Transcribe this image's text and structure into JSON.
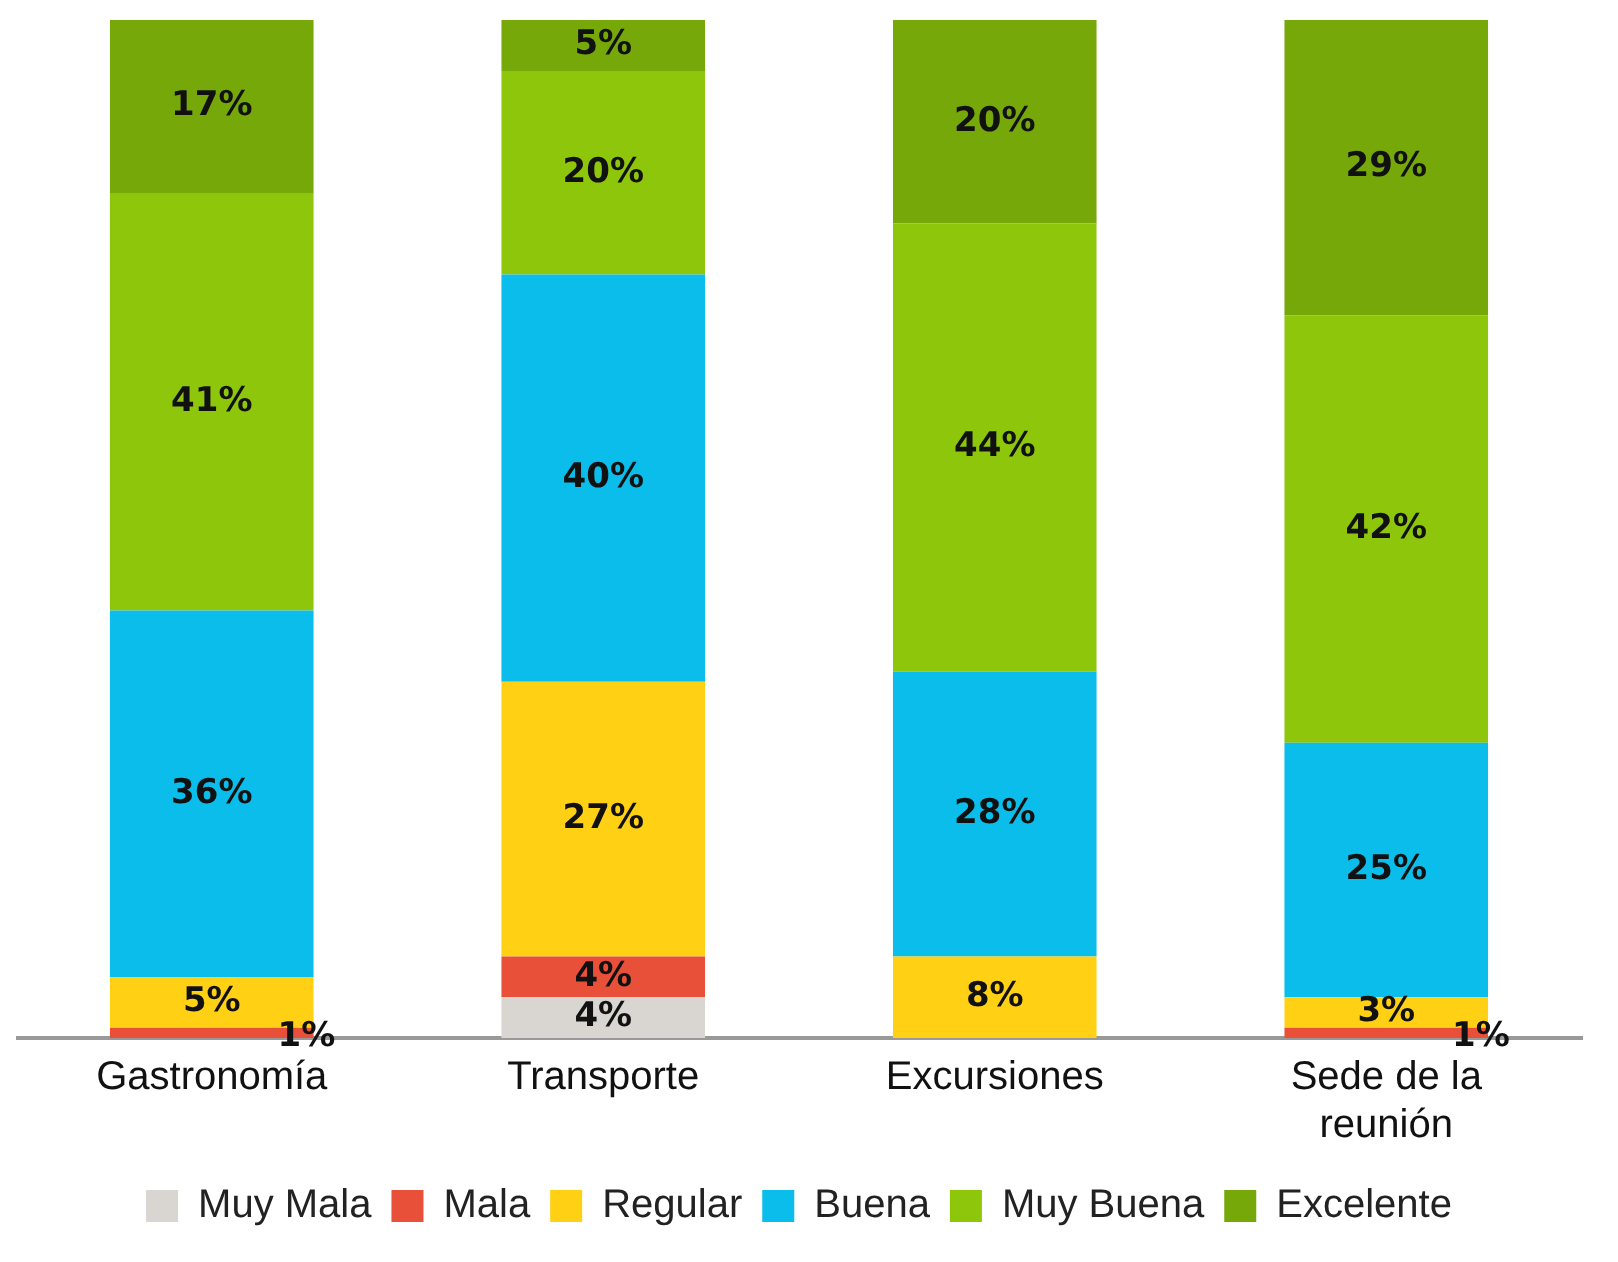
{
  "chart_data": {
    "type": "bar",
    "stacked": true,
    "categories": [
      "Gastronomía",
      "Transporte",
      "Excursiones",
      "Sede de la reunión"
    ],
    "series": [
      {
        "name": "Muy Mala",
        "color": "#d9d5d0",
        "values": [
          null,
          4,
          null,
          null
        ],
        "value_labels": [
          null,
          "4%",
          null,
          null
        ]
      },
      {
        "name": "Mala",
        "color": "#e8503a",
        "values": [
          1,
          4,
          null,
          1
        ],
        "value_labels": [
          "1%",
          "4%",
          null,
          "1%"
        ]
      },
      {
        "name": "Regular",
        "color": "#ffd014",
        "values": [
          5,
          27,
          8,
          3
        ],
        "value_labels": [
          "5%",
          "27%",
          "8%",
          "3%"
        ]
      },
      {
        "name": "Buena",
        "color": "#0bbdea",
        "values": [
          36,
          40,
          28,
          25
        ],
        "value_labels": [
          "36%",
          "40%",
          "28%",
          "25%"
        ]
      },
      {
        "name": "Muy Buena",
        "color": "#8dc60a",
        "values": [
          41,
          20,
          44,
          42
        ],
        "value_labels": [
          "41%",
          "20%",
          "44%",
          "42%"
        ]
      },
      {
        "name": "Excelente",
        "color": "#76a80a",
        "values": [
          17,
          5,
          20,
          29
        ],
        "value_labels": [
          "17%",
          "5%",
          "20%",
          "29%"
        ]
      }
    ],
    "grid": false,
    "legend": "bottom"
  }
}
